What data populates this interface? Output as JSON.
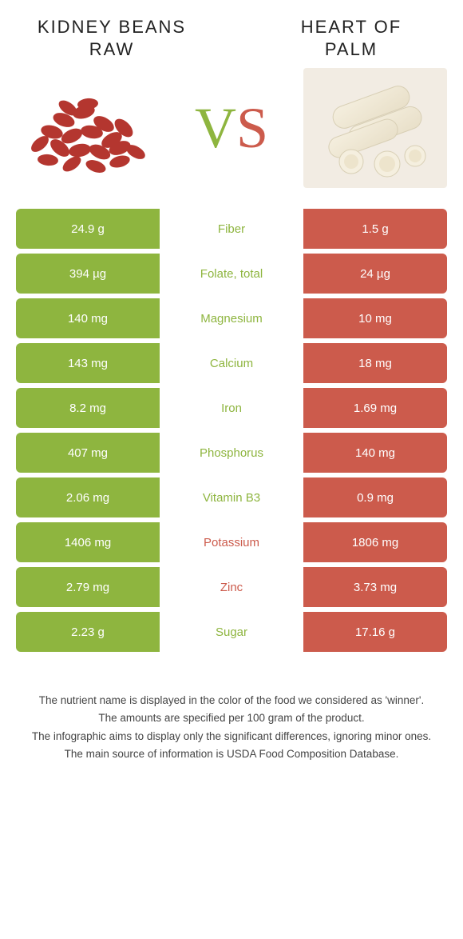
{
  "colors": {
    "green": "#8eb53f",
    "red": "#cc5b4c"
  },
  "foods": {
    "left": {
      "title": "Kidney beans raw"
    },
    "right": {
      "title": "Heart of palm"
    }
  },
  "vs": {
    "v": "V",
    "s": "S"
  },
  "rows": [
    {
      "left": "24.9 g",
      "name": "Fiber",
      "right": "1.5 g",
      "winner": "left"
    },
    {
      "left": "394 µg",
      "name": "Folate, total",
      "right": "24 µg",
      "winner": "left"
    },
    {
      "left": "140 mg",
      "name": "Magnesium",
      "right": "10 mg",
      "winner": "left"
    },
    {
      "left": "143 mg",
      "name": "Calcium",
      "right": "18 mg",
      "winner": "left"
    },
    {
      "left": "8.2 mg",
      "name": "Iron",
      "right": "1.69 mg",
      "winner": "left"
    },
    {
      "left": "407 mg",
      "name": "Phosphorus",
      "right": "140 mg",
      "winner": "left"
    },
    {
      "left": "2.06 mg",
      "name": "Vitamin B3",
      "right": "0.9 mg",
      "winner": "left"
    },
    {
      "left": "1406 mg",
      "name": "Potassium",
      "right": "1806 mg",
      "winner": "right"
    },
    {
      "left": "2.79 mg",
      "name": "Zinc",
      "right": "3.73 mg",
      "winner": "right"
    },
    {
      "left": "2.23 g",
      "name": "Sugar",
      "right": "17.16 g",
      "winner": "left"
    }
  ],
  "footer": [
    "The nutrient name is displayed in the color of the food we considered as 'winner'.",
    "The amounts are specified per 100 gram of the product.",
    "The infographic aims to display only the significant differences, ignoring minor ones.",
    "The main source of information is USDA Food Composition Database."
  ]
}
